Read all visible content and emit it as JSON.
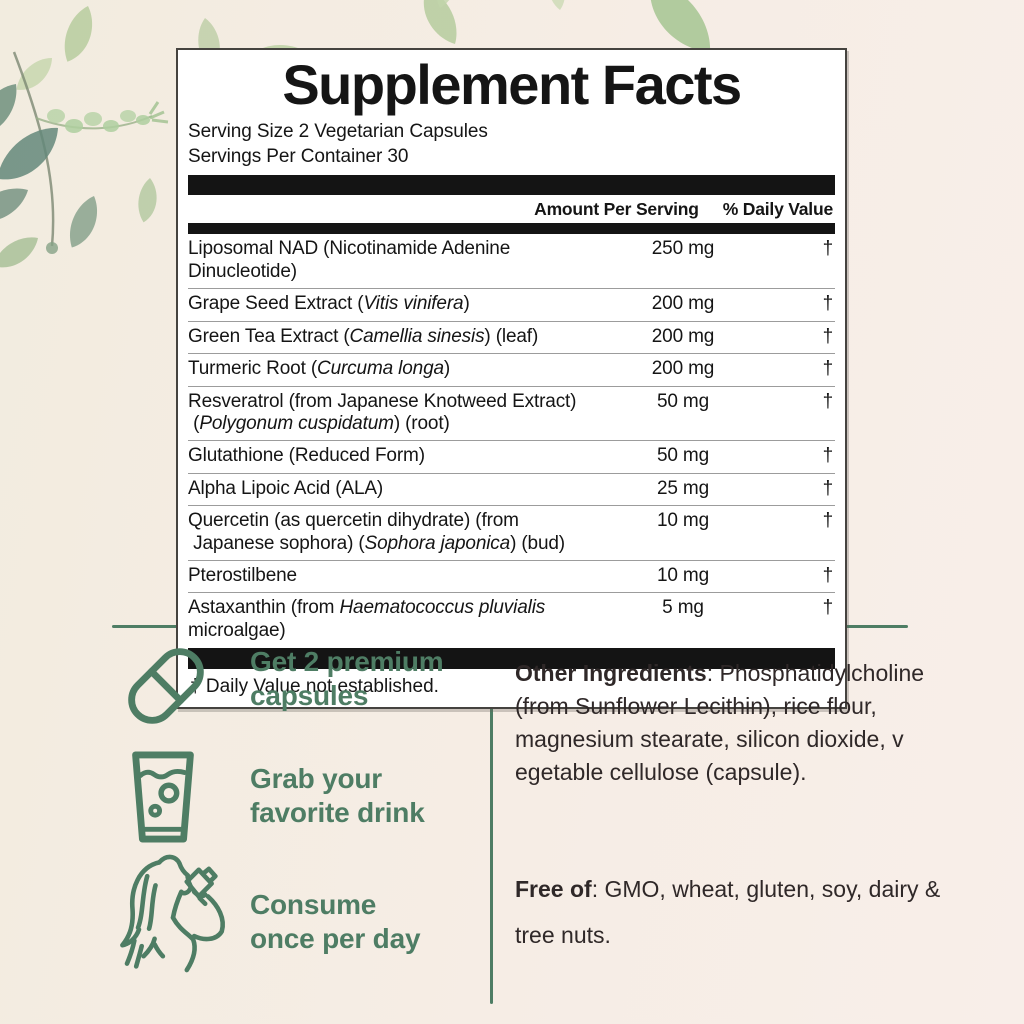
{
  "colors": {
    "background": "#f5ede5",
    "accent_green": "#4e7d64",
    "table_black": "#141414",
    "body_text": "#2f2828",
    "panel_background": "#ffffff"
  },
  "panel": {
    "title": "Supplement Facts",
    "serving_size": "Serving Size 2 Vegetarian Capsules",
    "servings_per_container": "Servings Per Container 30",
    "header": {
      "amount": "Amount Per Serving",
      "daily_value": "% Daily Value"
    },
    "rows": [
      {
        "name": [
          {
            "t": "Liposomal NAD (Nicotinamide Adenine Dinucleotide)"
          }
        ],
        "amount": "250 mg",
        "dv": "†"
      },
      {
        "name": [
          {
            "t": "Grape Seed Extract ("
          },
          {
            "t": "Vitis vinifera",
            "i": true
          },
          {
            "t": ")"
          }
        ],
        "amount": "200 mg",
        "dv": "†"
      },
      {
        "name": [
          {
            "t": "Green Tea Extract ("
          },
          {
            "t": "Camellia sinesis",
            "i": true
          },
          {
            "t": ") (leaf)"
          }
        ],
        "amount": "200 mg",
        "dv": "†"
      },
      {
        "name": [
          {
            "t": "Turmeric Root ("
          },
          {
            "t": "Curcuma longa",
            "i": true
          },
          {
            "t": ")"
          }
        ],
        "amount": "200 mg",
        "dv": "†"
      },
      {
        "name": [
          {
            "t": "Resveratrol (from Japanese Knotweed Extract)\n ("
          },
          {
            "t": "Polygonum cuspidatum",
            "i": true
          },
          {
            "t": ") (root)"
          }
        ],
        "amount": "50 mg",
        "dv": "†"
      },
      {
        "name": [
          {
            "t": "Glutathione (Reduced Form)"
          }
        ],
        "amount": "50 mg",
        "dv": "†"
      },
      {
        "name": [
          {
            "t": "Alpha Lipoic Acid (ALA)"
          }
        ],
        "amount": "25 mg",
        "dv": "†"
      },
      {
        "name": [
          {
            "t": "Quercetin (as quercetin dihydrate) (from\n Japanese sophora) ("
          },
          {
            "t": "Sophora japonica",
            "i": true
          },
          {
            "t": ") (bud)"
          }
        ],
        "amount": "10 mg",
        "dv": "†"
      },
      {
        "name": [
          {
            "t": "Pterostilbene"
          }
        ],
        "amount": "10 mg",
        "dv": "†"
      },
      {
        "name": [
          {
            "t": "Astaxanthin (from "
          },
          {
            "t": "Haematococcus pluvialis",
            "i": true
          },
          {
            "t": " microalgae)"
          }
        ],
        "amount": "5 mg",
        "dv": "†"
      }
    ],
    "footnote": "† Daily Value not established."
  },
  "instructions": {
    "items": [
      {
        "icon": "capsule-icon",
        "label": "Get 2 premium\ncapsules"
      },
      {
        "icon": "drink-glass-icon",
        "label": "Grab your\nfavorite drink"
      },
      {
        "icon": "woman-drinking-icon",
        "label": "Consume\nonce per day"
      }
    ]
  },
  "details": {
    "other_ingredients": {
      "label": "Other Ingredients",
      "text": ": Phosphatidylcholine\n(from Sunflower Lecithin), rice flour,\nmagnesium stearate, silicon dioxide, v\negetable cellulose (capsule)."
    },
    "free_of": {
      "label": "Free of",
      "text": ": GMO, wheat, gluten, soy, dairy &\ntree nuts."
    }
  }
}
